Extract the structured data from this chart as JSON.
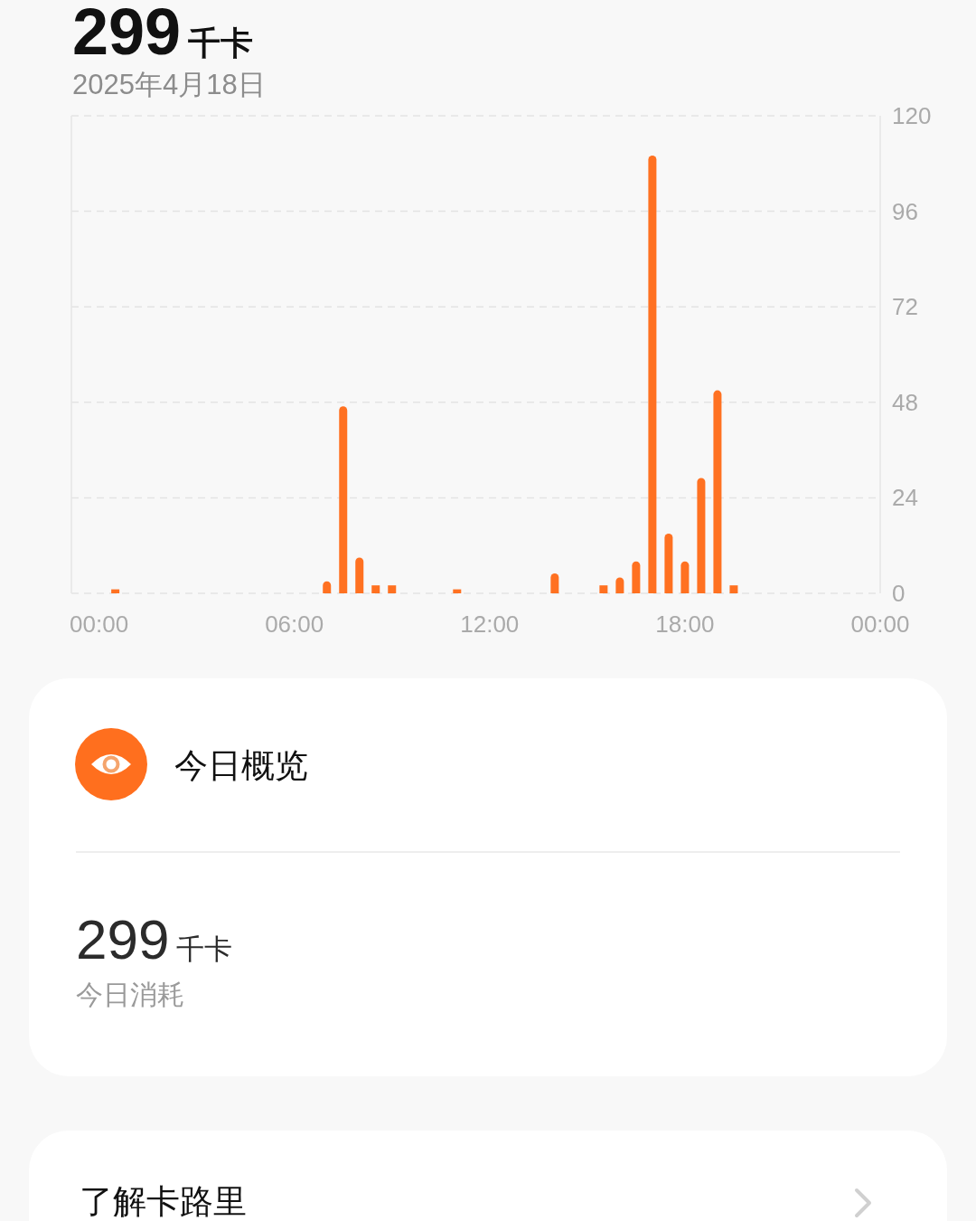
{
  "chart_data": [
    {
      "type": "bar",
      "title": "299千卡",
      "subtitle": "2025年4月18日",
      "x": [
        0.5,
        7,
        7.5,
        8,
        8.5,
        9,
        11,
        14,
        15.5,
        16,
        16.5,
        17,
        17.5,
        18,
        18.5,
        19,
        19.5
      ],
      "values": [
        1,
        3,
        47,
        9,
        2,
        2,
        1,
        5,
        2,
        4,
        8,
        110,
        15,
        8,
        29,
        51,
        2
      ],
      "color": "#ff7121",
      "xlim": [
        -0.85,
        24
      ],
      "xticks": [
        {
          "value": 0,
          "label": "00:00"
        },
        {
          "value": 6,
          "label": "06:00"
        },
        {
          "value": 12,
          "label": "12:00"
        },
        {
          "value": 18,
          "label": "18:00"
        },
        {
          "value": 24,
          "label": "00:00"
        }
      ],
      "ylim": [
        0,
        120
      ],
      "yticks": [
        0,
        24,
        48,
        72,
        96,
        120
      ],
      "grid": "y"
    },
    {
      "type": "other",
      "title": "今日概览",
      "annotations": [
        "299千卡",
        "今日消耗"
      ]
    },
    {
      "type": "other",
      "title": "了解卡路里"
    }
  ]
}
